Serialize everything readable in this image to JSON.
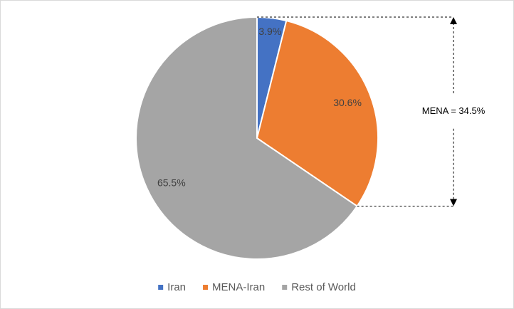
{
  "chart_data": {
    "type": "pie",
    "categories": [
      "Iran",
      "MENA-Iran",
      "Rest of World"
    ],
    "values": [
      3.9,
      30.6,
      65.5
    ],
    "value_labels": [
      "3.9%",
      "30.6%",
      "65.5%"
    ],
    "colors": [
      "#4472c4",
      "#ed7d31",
      "#a5a5a5"
    ],
    "annotation": "MENA = 34.5%",
    "legend": "bottom"
  }
}
